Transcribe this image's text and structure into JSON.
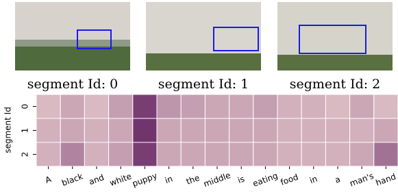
{
  "images": [
    {
      "caption": "segment Id: 0"
    },
    {
      "caption": "segment Id: 1"
    },
    {
      "caption": "segment Id: 2"
    }
  ],
  "chart_data": {
    "type": "heatmap",
    "ylabel": "segment Id",
    "rows": [
      "0",
      "1",
      "2"
    ],
    "columns": [
      "A",
      "black",
      "and",
      "white",
      "puppy",
      "in",
      "the",
      "middle",
      "is",
      "eating",
      "food",
      "in",
      "a",
      "man's",
      "hand"
    ],
    "values": [
      [
        0.2,
        0.3,
        0.2,
        0.35,
        0.9,
        0.4,
        0.35,
        0.3,
        0.3,
        0.35,
        0.25,
        0.25,
        0.2,
        0.3,
        0.2
      ],
      [
        0.25,
        0.3,
        0.25,
        0.3,
        0.95,
        0.3,
        0.3,
        0.3,
        0.3,
        0.3,
        0.25,
        0.25,
        0.25,
        0.25,
        0.3
      ],
      [
        0.25,
        0.5,
        0.25,
        0.35,
        0.9,
        0.3,
        0.3,
        0.3,
        0.3,
        0.3,
        0.25,
        0.25,
        0.25,
        0.3,
        0.6
      ]
    ],
    "colors": [
      "#f5dcd8",
      "#6a2c68"
    ]
  }
}
